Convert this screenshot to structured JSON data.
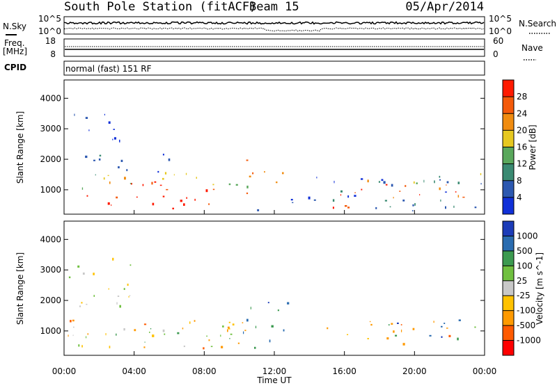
{
  "header": {
    "station": "South Pole Station (fitACF)",
    "beam": "Beam 15",
    "date": "05/Apr/2014"
  },
  "top_panels": {
    "nsky_label": "N.Sky",
    "nsky_ticks": [
      "10^5",
      "10^0"
    ],
    "nsearch_label": "N.Search",
    "nsearch_ticks": [
      "10^5",
      "10^0"
    ],
    "freq_label_1": "Freq.",
    "freq_label_2": "[MHz]",
    "freq_ticks": [
      "18",
      "8"
    ],
    "nave_label": "Nave",
    "nave_ticks": [
      "60",
      "0"
    ],
    "cpid_label": "CPID",
    "cpid_value": "normal (fast) 151 RF"
  },
  "colors": {
    "power_scale": [
      "#1030d8",
      "#2c58b0",
      "#3a8a72",
      "#5aa85c",
      "#e6c820",
      "#f08c10",
      "#f45a0a",
      "#ff1a00"
    ],
    "velocity_scale": [
      "#ff0000",
      "#ff5a00",
      "#ff9a00",
      "#ffc200",
      "#c8c8c8",
      "#70c040",
      "#3c9a50",
      "#2a6cb0",
      "#1c3cb8"
    ]
  },
  "chart_data": [
    {
      "type": "heatmap",
      "name": "power",
      "xlabel": "",
      "ylabel": "Slant Range [km]",
      "xlim_hours": [
        0,
        24
      ],
      "ylim": [
        200,
        4600
      ],
      "yticks": [
        1000,
        2000,
        3000,
        4000
      ],
      "colorbar_label": "Power [dB]",
      "colorbar_ticks": [
        "28",
        "24",
        "20",
        "16",
        "12",
        "8",
        "4"
      ],
      "colorbar_range": [
        0,
        32
      ],
      "scatter_regions": [
        {
          "t0": 0.2,
          "t1": 10.0,
          "r0": 400,
          "r1": 1300,
          "level": 7
        },
        {
          "t0": 0.0,
          "t1": 10.6,
          "r0": 1000,
          "r1": 1600,
          "level": 4
        },
        {
          "t0": 0.2,
          "t1": 6.0,
          "r0": 1400,
          "r1": 2200,
          "level": 1
        },
        {
          "t0": 0.3,
          "t1": 3.5,
          "r0": 2400,
          "r1": 3600,
          "level": 0
        },
        {
          "t0": 10.3,
          "t1": 12.5,
          "r0": 700,
          "r1": 2000,
          "level": 5
        },
        {
          "t0": 11.0,
          "t1": 14.0,
          "r0": 300,
          "r1": 900,
          "level": 0
        },
        {
          "t0": 14.0,
          "t1": 17.0,
          "r0": 400,
          "r1": 1200,
          "level": 7
        },
        {
          "t0": 17.0,
          "t1": 23.8,
          "r0": 700,
          "r1": 1400,
          "level": 6
        },
        {
          "t0": 14.0,
          "t1": 23.8,
          "r0": 300,
          "r1": 1500,
          "level": 1
        },
        {
          "t0": 19.0,
          "t1": 23.8,
          "r0": 1100,
          "r1": 1600,
          "level": 3
        }
      ]
    },
    {
      "type": "heatmap",
      "name": "velocity",
      "xlabel": "Time UT",
      "ylabel": "Slant Range [km]",
      "xticks": [
        "00:00",
        "04:00",
        "08:00",
        "12:00",
        "16:00",
        "20:00",
        "00:00"
      ],
      "xlim_hours": [
        0,
        24
      ],
      "ylim": [
        200,
        4600
      ],
      "yticks": [
        1000,
        2000,
        3000,
        4000
      ],
      "colorbar_label": "Velocity [m s^-1]",
      "colorbar_ticks": [
        "1000",
        "500",
        "100",
        "25",
        "-25",
        "-100",
        "-500",
        "-1000"
      ],
      "scatter_regions": [
        {
          "t0": 0.2,
          "t1": 10.5,
          "r0": 400,
          "r1": 1400,
          "level": 2
        },
        {
          "t0": 0.2,
          "t1": 9.5,
          "r0": 500,
          "r1": 1200,
          "level": 5
        },
        {
          "t0": 0.2,
          "t1": 4.0,
          "r0": 1600,
          "r1": 3600,
          "level": 4
        },
        {
          "t0": 10.0,
          "t1": 12.8,
          "r0": 600,
          "r1": 2000,
          "level": 7
        },
        {
          "t0": 8.5,
          "t1": 11.0,
          "r0": 400,
          "r1": 1200,
          "level": 6
        },
        {
          "t0": 14.5,
          "t1": 22.5,
          "r0": 600,
          "r1": 1400,
          "level": 2
        },
        {
          "t0": 18.5,
          "t1": 22.0,
          "r0": 800,
          "r1": 1600,
          "level": 7
        },
        {
          "t0": 22.0,
          "t1": 23.8,
          "r0": 600,
          "r1": 1400,
          "level": 6
        }
      ]
    }
  ]
}
